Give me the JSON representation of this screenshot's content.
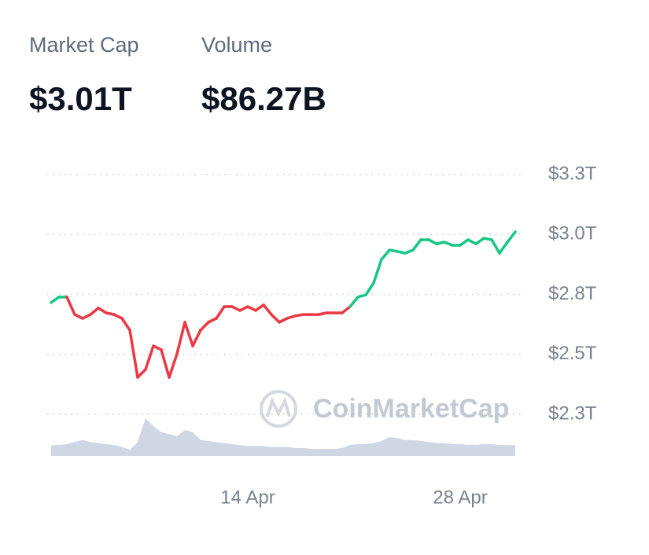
{
  "stats": [
    {
      "label": "Market Cap",
      "value": "$3.01T"
    },
    {
      "label": "Volume",
      "value": "$86.27B"
    }
  ],
  "chart_data": {
    "type": "line",
    "watermark": "CoinMarketCap",
    "categories": [
      null,
      null,
      null,
      null,
      null,
      null,
      null,
      null,
      null,
      null,
      null,
      null,
      null,
      null,
      null,
      null,
      null,
      null,
      null,
      null,
      null,
      null,
      null,
      null,
      null,
      "14 Apr",
      null,
      null,
      null,
      null,
      null,
      null,
      null,
      null,
      null,
      null,
      null,
      null,
      null,
      null,
      null,
      null,
      null,
      null,
      null,
      null,
      null,
      null,
      null,
      null,
      null,
      null,
      "28 Apr",
      null,
      null,
      null,
      null,
      null,
      null,
      null
    ],
    "series": [
      {
        "name": "Market Cap",
        "up_color": "#16c784",
        "down_color": "#ea3943",
        "values": [
          2.716,
          2.739,
          2.739,
          2.666,
          2.65,
          2.666,
          2.693,
          2.673,
          2.666,
          2.65,
          2.601,
          2.404,
          2.437,
          2.535,
          2.519,
          2.404,
          2.502,
          2.634,
          2.535,
          2.601,
          2.634,
          2.65,
          2.699,
          2.699,
          2.683,
          2.699,
          2.683,
          2.706,
          2.666,
          2.634,
          2.65,
          2.66,
          2.666,
          2.666,
          2.666,
          2.673,
          2.673,
          2.673,
          2.699,
          2.739,
          2.748,
          2.798,
          2.896,
          2.935,
          2.929,
          2.922,
          2.935,
          2.978,
          2.978,
          2.961,
          2.968,
          2.955,
          2.955,
          2.978,
          2.961,
          2.984,
          2.978,
          2.922,
          2.968,
          3.011
        ]
      },
      {
        "name": "Volume",
        "color": "#cfd6e4",
        "values": [
          55,
          55,
          60,
          70,
          80,
          70,
          65,
          60,
          55,
          45,
          30,
          70,
          190,
          150,
          120,
          110,
          100,
          130,
          120,
          80,
          75,
          70,
          65,
          60,
          55,
          50,
          50,
          50,
          45,
          45,
          45,
          40,
          40,
          35,
          35,
          35,
          35,
          40,
          55,
          60,
          60,
          65,
          75,
          95,
          90,
          80,
          80,
          75,
          70,
          65,
          65,
          60,
          60,
          55,
          55,
          60,
          60,
          55,
          55,
          55
        ]
      }
    ],
    "ylim": [
      2.1,
      3.3
    ],
    "yticks": [
      {
        "value": 2.25,
        "label": "$2.3T"
      },
      {
        "value": 2.5,
        "label": "$2.5T"
      },
      {
        "value": 2.75,
        "label": "$2.8T"
      },
      {
        "value": 3.0,
        "label": "$3.0T"
      },
      {
        "value": 3.25,
        "label": "$3.3T"
      }
    ],
    "grid": true
  }
}
